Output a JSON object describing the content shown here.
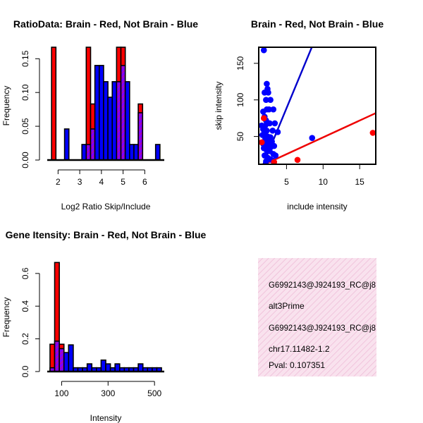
{
  "chart_data": [
    {
      "type": "histogram",
      "title": "RatioData: Brain - Red, Not Brain - Blue",
      "xlabel": "Log2 Ratio Skip/Include",
      "ylabel": "Frequency",
      "xlim": [
        1.5,
        6.9
      ],
      "ylim": [
        0,
        0.167
      ],
      "xticks": [
        2,
        3,
        4,
        5,
        6
      ],
      "yticks": [
        0.0,
        0.05,
        0.1,
        0.15
      ],
      "ytick_labels": [
        "0.00",
        "0.05",
        "0.10",
        "0.15"
      ],
      "bin_width": 0.2,
      "series": [
        {
          "name": "Brain",
          "color": "#ff0000",
          "bins": [
            {
              "x0": 1.7,
              "value": 0.167
            },
            {
              "x0": 3.3,
              "value": 0.167
            },
            {
              "x0": 3.5,
              "value": 0.083
            },
            {
              "x0": 4.7,
              "value": 0.167
            },
            {
              "x0": 4.9,
              "value": 0.167
            },
            {
              "x0": 5.7,
              "value": 0.083
            }
          ]
        },
        {
          "name": "Not Brain",
          "color": "#0000ff",
          "bins": [
            {
              "x0": 2.3,
              "value": 0.046
            },
            {
              "x0": 3.1,
              "value": 0.023
            },
            {
              "x0": 3.3,
              "value": 0.023
            },
            {
              "x0": 3.5,
              "value": 0.046
            },
            {
              "x0": 3.7,
              "value": 0.14
            },
            {
              "x0": 3.9,
              "value": 0.14
            },
            {
              "x0": 4.1,
              "value": 0.116
            },
            {
              "x0": 4.3,
              "value": 0.093
            },
            {
              "x0": 4.5,
              "value": 0.116
            },
            {
              "x0": 4.7,
              "value": 0.116
            },
            {
              "x0": 4.9,
              "value": 0.14
            },
            {
              "x0": 5.1,
              "value": 0.116
            },
            {
              "x0": 5.3,
              "value": 0.023
            },
            {
              "x0": 5.5,
              "value": 0.023
            },
            {
              "x0": 5.7,
              "value": 0.07
            },
            {
              "x0": 6.5,
              "value": 0.023
            }
          ]
        }
      ]
    },
    {
      "type": "scatter",
      "title": "Brain - Red, Not Brain - Blue",
      "xlabel": "include intensity",
      "ylabel": "skip intensity",
      "xlim": [
        1.2,
        17.2
      ],
      "ylim": [
        12,
        172
      ],
      "xticks": [
        5,
        10,
        15
      ],
      "yticks": [
        50,
        100,
        150
      ],
      "series": [
        {
          "name": "Not Brain",
          "color": "#0000ff",
          "points": [
            [
              1.9,
              168
            ],
            [
              2.3,
              122
            ],
            [
              2.4,
              115
            ],
            [
              2.0,
              110
            ],
            [
              2.5,
              110
            ],
            [
              2.8,
              100
            ],
            [
              2.2,
              100
            ],
            [
              2.3,
              87
            ],
            [
              2.6,
              87
            ],
            [
              3.2,
              87
            ],
            [
              1.8,
              84
            ],
            [
              2.0,
              77
            ],
            [
              2.2,
              72
            ],
            [
              1.6,
              65
            ],
            [
              2.1,
              65
            ],
            [
              2.7,
              68
            ],
            [
              3.4,
              68
            ],
            [
              1.8,
              60
            ],
            [
              2.3,
              58
            ],
            [
              2.0,
              56
            ],
            [
              3.1,
              58
            ],
            [
              3.8,
              56
            ],
            [
              1.7,
              52
            ],
            [
              2.4,
              50
            ],
            [
              2.8,
              49
            ],
            [
              2.1,
              47
            ],
            [
              2.6,
              45
            ],
            [
              3.0,
              43
            ],
            [
              1.8,
              40
            ],
            [
              2.2,
              40
            ],
            [
              2.5,
              38
            ],
            [
              2.9,
              36
            ],
            [
              3.3,
              37
            ],
            [
              1.9,
              34
            ],
            [
              2.3,
              31
            ],
            [
              2.7,
              30
            ],
            [
              3.2,
              26
            ],
            [
              3.5,
              24
            ],
            [
              2.0,
              24
            ],
            [
              2.4,
              21
            ],
            [
              2.8,
              19
            ],
            [
              3.1,
              17
            ],
            [
              2.2,
              16
            ],
            [
              8.5,
              48
            ]
          ]
        },
        {
          "name": "Brain",
          "color": "#ff0000",
          "points": [
            [
              1.9,
              75
            ],
            [
              1.6,
              42
            ],
            [
              3.3,
              15
            ],
            [
              6.5,
              18
            ],
            [
              16.8,
              55
            ]
          ]
        }
      ],
      "fit_lines": [
        {
          "name": "Not Brain",
          "color": "#0000cc",
          "slope": 24.1,
          "intercept": -31.8
        },
        {
          "name": "Brain",
          "color": "#ee0000",
          "slope": 4.6,
          "intercept": 2.8
        }
      ]
    },
    {
      "type": "histogram",
      "title": "Gene Itensity: Brain - Red, Not Brain - Blue",
      "xlabel": "Intensity",
      "ylabel": "Frequency",
      "xlim": [
        38,
        542
      ],
      "ylim": [
        0,
        0.69
      ],
      "xticks": [
        100,
        300,
        500
      ],
      "yticks": [
        0.0,
        0.2,
        0.4,
        0.6
      ],
      "ytick_labels": [
        "0.0",
        "0.2",
        "0.4",
        "0.6"
      ],
      "bin_width": 20,
      "series": [
        {
          "name": "Brain",
          "color": "#ff0000",
          "bins": [
            {
              "x0": 50,
              "value": 0.167
            },
            {
              "x0": 70,
              "value": 0.667
            },
            {
              "x0": 90,
              "value": 0.167
            }
          ]
        },
        {
          "name": "Not Brain",
          "color": "#0000ff",
          "bins": [
            {
              "x0": 50,
              "value": 0.023
            },
            {
              "x0": 70,
              "value": 0.186
            },
            {
              "x0": 90,
              "value": 0.14
            },
            {
              "x0": 110,
              "value": 0.116
            },
            {
              "x0": 130,
              "value": 0.163
            },
            {
              "x0": 150,
              "value": 0.023
            },
            {
              "x0": 170,
              "value": 0.023
            },
            {
              "x0": 190,
              "value": 0.023
            },
            {
              "x0": 210,
              "value": 0.047
            },
            {
              "x0": 230,
              "value": 0.023
            },
            {
              "x0": 250,
              "value": 0.023
            },
            {
              "x0": 270,
              "value": 0.07
            },
            {
              "x0": 290,
              "value": 0.047
            },
            {
              "x0": 310,
              "value": 0.023
            },
            {
              "x0": 330,
              "value": 0.047
            },
            {
              "x0": 350,
              "value": 0.023
            },
            {
              "x0": 370,
              "value": 0.023
            },
            {
              "x0": 390,
              "value": 0.023
            },
            {
              "x0": 410,
              "value": 0.023
            },
            {
              "x0": 430,
              "value": 0.047
            },
            {
              "x0": 450,
              "value": 0.023
            },
            {
              "x0": 470,
              "value": 0.023
            },
            {
              "x0": 490,
              "value": 0.023
            },
            {
              "x0": 510,
              "value": 0.023
            }
          ]
        }
      ]
    }
  ],
  "info_panel": {
    "line1": "G6992143@J924193_RC@j8",
    "line2": "alt3Prime",
    "line3": "G6992143@J924193_RC@j8",
    "line4": "chr17.11482-1.2",
    "pval": "Pval: 0.107351",
    "pval_color": "#a00000",
    "background_color": "#f7dbe9"
  }
}
